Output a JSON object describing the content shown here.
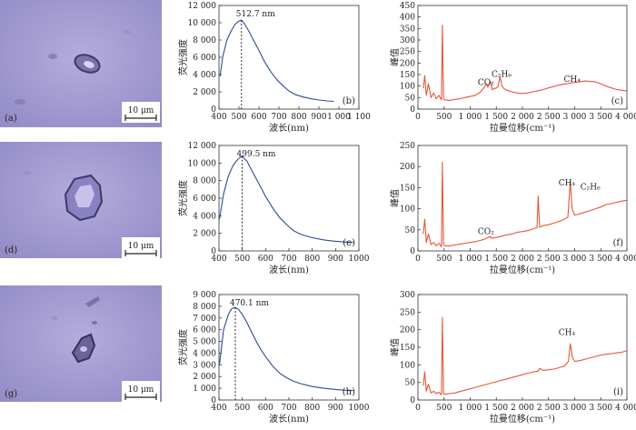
{
  "colors": {
    "fluorescence_line": "#2c4a9a",
    "raman_line": "#e8553a",
    "micro_bg": "#a9a2d6",
    "micro_bg_dark": "#8f87c4",
    "scale_bg": "#ffffff"
  },
  "scale_bar_label": "10 μm",
  "micrographs": [
    {
      "label": "(a)"
    },
    {
      "label": "(d)"
    },
    {
      "label": "(g)"
    }
  ],
  "chart_data": [
    {
      "type": "line",
      "panel_label": "(b)",
      "xlabel": "波长(nm)",
      "ylabel": "荧光强度",
      "xlim": [
        400,
        1100
      ],
      "ylim": [
        0,
        12000
      ],
      "xticks": [
        "400",
        "500",
        "600",
        "700",
        "800",
        "900",
        "1 000",
        "1 100"
      ],
      "yticks": [
        "0",
        "2 000",
        "4 000",
        "6 000",
        "8 000",
        "10 000",
        "12 000"
      ],
      "peak": {
        "x": 512.7,
        "label": "512.7 nm"
      },
      "series": [
        {
          "x": [
            405,
            420,
            440,
            460,
            480,
            500,
            512.7,
            530,
            550,
            570,
            600,
            630,
            660,
            690,
            720,
            750,
            780,
            820,
            860,
            900,
            940,
            975
          ],
          "y": [
            3800,
            6200,
            8000,
            9000,
            9800,
            10200,
            10300,
            9800,
            9000,
            8100,
            6800,
            5400,
            4300,
            3400,
            2700,
            2100,
            1700,
            1400,
            1200,
            1050,
            950,
            900
          ]
        }
      ]
    },
    {
      "type": "line",
      "panel_label": "(c)",
      "xlabel": "拉曼位移(cm⁻¹)",
      "ylabel": "峰值",
      "xlim": [
        0,
        4000
      ],
      "ylim": [
        0,
        450
      ],
      "xticks": [
        "0",
        "500",
        "1 000",
        "1 500",
        "2 000",
        "2 500",
        "3 000",
        "3 500",
        "4 000"
      ],
      "yticks": [
        "0",
        "50",
        "100",
        "150",
        "200",
        "250",
        "300",
        "350",
        "400",
        "450"
      ],
      "annotations": [
        {
          "text": "CO₂",
          "x": 1300,
          "y": 105
        },
        {
          "text": "C₂H₆",
          "x": 1600,
          "y": 140
        },
        {
          "text": "CH₄",
          "x": 2950,
          "y": 118
        }
      ],
      "series": [
        {
          "x": [
            100,
            130,
            160,
            200,
            250,
            300,
            350,
            400,
            450,
            468,
            490,
            520,
            600,
            700,
            800,
            900,
            1000,
            1100,
            1200,
            1285,
            1310,
            1340,
            1388,
            1420,
            1480,
            1530,
            1570,
            1610,
            1650,
            1700,
            1800,
            1900,
            2000,
            2100,
            2200,
            2300,
            2400,
            2500,
            2600,
            2700,
            2800,
            2900,
            3000,
            3100,
            3200,
            3300,
            3400,
            3500,
            3600,
            3700,
            3800,
            3900,
            4000
          ],
          "y": [
            90,
            145,
            60,
            110,
            50,
            70,
            45,
            60,
            40,
            365,
            45,
            40,
            38,
            42,
            45,
            50,
            55,
            60,
            75,
            100,
            110,
            95,
            120,
            85,
            90,
            95,
            140,
            100,
            88,
            82,
            75,
            70,
            68,
            70,
            75,
            80,
            85,
            92,
            98,
            104,
            108,
            112,
            116,
            118,
            122,
            120,
            118,
            110,
            100,
            92,
            85,
            82,
            78
          ]
        }
      ]
    },
    {
      "type": "line",
      "panel_label": "(e)",
      "xlabel": "波长(nm)",
      "ylabel": "荧光强度",
      "xlim": [
        400,
        1000
      ],
      "ylim": [
        0,
        12000
      ],
      "xticks": [
        "400",
        "500",
        "600",
        "700",
        "800",
        "900",
        "1000"
      ],
      "yticks": [
        "0",
        "2 000",
        "4 000",
        "6 000",
        "8 000",
        "10 000",
        "12 000"
      ],
      "peak": {
        "x": 499.5,
        "label": "499.5 nm"
      },
      "series": [
        {
          "x": [
            402,
            420,
            440,
            460,
            480,
            499.5,
            520,
            540,
            560,
            580,
            600,
            630,
            660,
            690,
            720,
            750,
            800,
            850,
            900,
            950,
            975
          ],
          "y": [
            3600,
            6500,
            8500,
            9700,
            10400,
            10800,
            10200,
            9200,
            8200,
            7200,
            6200,
            4900,
            3800,
            3000,
            2300,
            1900,
            1500,
            1250,
            1100,
            1000,
            950
          ]
        }
      ]
    },
    {
      "type": "line",
      "panel_label": "(f)",
      "xlabel": "拉曼位移(cm⁻¹)",
      "ylabel": "峰值",
      "xlim": [
        0,
        4000
      ],
      "ylim": [
        0,
        250
      ],
      "xticks": [
        "0",
        "500",
        "1 000",
        "1 500",
        "2 000",
        "2 500",
        "3 000",
        "3 500",
        "4 000"
      ],
      "yticks": [
        "0",
        "50",
        "100",
        "150",
        "200",
        "250"
      ],
      "annotations": [
        {
          "text": "CO₂",
          "x": 1300,
          "y": 40
        },
        {
          "text": "CH₄",
          "x": 2850,
          "y": 155
        },
        {
          "text": "C₂H₆",
          "x": 3300,
          "y": 145
        }
      ],
      "series": [
        {
          "x": [
            100,
            130,
            160,
            200,
            250,
            300,
            350,
            400,
            450,
            468,
            490,
            520,
            600,
            700,
            800,
            900,
            1000,
            1100,
            1200,
            1285,
            1300,
            1388,
            1400,
            1500,
            1600,
            1700,
            1800,
            1900,
            2000,
            2100,
            2200,
            2280,
            2300,
            2330,
            2400,
            2500,
            2600,
            2700,
            2800,
            2870,
            2917,
            2950,
            3000,
            3100,
            3200,
            3300,
            3400,
            3500,
            3600,
            3700,
            3800,
            3900,
            4000
          ],
          "y": [
            40,
            75,
            20,
            40,
            15,
            20,
            12,
            18,
            10,
            210,
            15,
            12,
            12,
            14,
            16,
            18,
            20,
            22,
            25,
            28,
            30,
            34,
            30,
            32,
            35,
            38,
            40,
            44,
            46,
            48,
            52,
            55,
            130,
            56,
            60,
            62,
            66,
            70,
            75,
            80,
            165,
            100,
            85,
            88,
            92,
            96,
            100,
            104,
            110,
            112,
            115,
            118,
            120
          ]
        }
      ]
    },
    {
      "type": "line",
      "panel_label": "(h)",
      "xlabel": "波长(nm)",
      "ylabel": "荧光强度",
      "xlim": [
        400,
        1000
      ],
      "ylim": [
        0,
        9000
      ],
      "xticks": [
        "400",
        "500",
        "600",
        "700",
        "800",
        "900",
        "1000"
      ],
      "yticks": [
        "0",
        "1 000",
        "2 000",
        "3 000",
        "4 000",
        "5 000",
        "6 000",
        "7 000",
        "8 000",
        "9 000"
      ],
      "peak": {
        "x": 470.1,
        "label": "470.1 nm"
      },
      "series": [
        {
          "x": [
            402,
            420,
            440,
            455,
            470.1,
            485,
            500,
            520,
            540,
            560,
            580,
            600,
            630,
            660,
            690,
            720,
            750,
            800,
            850,
            900,
            950,
            975
          ],
          "y": [
            3000,
            6000,
            7300,
            7800,
            7900,
            7700,
            7300,
            6600,
            5800,
            5000,
            4300,
            3700,
            2900,
            2300,
            1900,
            1600,
            1400,
            1150,
            1000,
            900,
            820,
            800
          ]
        }
      ]
    },
    {
      "type": "line",
      "panel_label": "(i)",
      "xlabel": "拉曼位移(cm⁻¹)",
      "ylabel": "峰值",
      "xlim": [
        0,
        4000
      ],
      "ylim": [
        0,
        300
      ],
      "xticks": [
        "0",
        "500",
        "1 000",
        "1 500",
        "2 000",
        "2 500",
        "3 000",
        "3 500",
        "4 000"
      ],
      "yticks": [
        "0",
        "50",
        "100",
        "150",
        "200",
        "250",
        "300"
      ],
      "annotations": [
        {
          "text": "CH₄",
          "x": 2850,
          "y": 185
        }
      ],
      "series": [
        {
          "x": [
            100,
            130,
            160,
            200,
            250,
            300,
            350,
            400,
            450,
            468,
            490,
            520,
            600,
            700,
            800,
            900,
            1000,
            1100,
            1200,
            1300,
            1400,
            1500,
            1600,
            1700,
            1800,
            1900,
            2000,
            2100,
            2200,
            2300,
            2330,
            2400,
            2500,
            2600,
            2700,
            2800,
            2880,
            2917,
            2960,
            3000,
            3100,
            3200,
            3300,
            3400,
            3500,
            3600,
            3700,
            3800,
            3900,
            4000
          ],
          "y": [
            40,
            80,
            25,
            45,
            20,
            25,
            18,
            22,
            15,
            235,
            18,
            16,
            18,
            20,
            24,
            28,
            32,
            36,
            40,
            44,
            48,
            52,
            56,
            60,
            64,
            68,
            72,
            76,
            80,
            82,
            90,
            84,
            86,
            88,
            92,
            96,
            110,
            160,
            120,
            110,
            112,
            116,
            120,
            124,
            128,
            130,
            132,
            134,
            136,
            140
          ]
        }
      ]
    }
  ]
}
